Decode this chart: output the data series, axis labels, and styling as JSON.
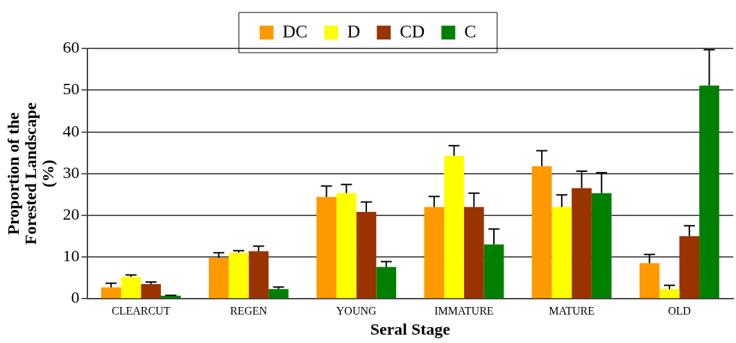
{
  "chart_data": {
    "type": "bar",
    "xlabel": "Seral Stage",
    "ylabel": "Proportion of the\nForested Landscape\n(%)",
    "categories": [
      "CLEARCUT",
      "REGEN",
      "YOUNG",
      "IMMATURE",
      "MATURE",
      "OLD"
    ],
    "series": [
      {
        "name": "DC",
        "color": "#ff9900",
        "values": [
          2.7,
          9.8,
          24.4,
          22.0,
          31.8,
          8.5
        ],
        "errors": [
          [
            2.7,
            3.7
          ],
          [
            9.8,
            11.0
          ],
          [
            24.4,
            27.0
          ],
          [
            22.0,
            24.5
          ],
          [
            31.8,
            35.5
          ],
          [
            8.5,
            10.6
          ]
        ]
      },
      {
        "name": "D",
        "color": "#ffff00",
        "values": [
          5.2,
          11.0,
          25.3,
          34.3,
          22.0,
          2.3
        ],
        "errors": [
          [
            5.2,
            5.7
          ],
          [
            11.0,
            11.5
          ],
          [
            25.3,
            27.4
          ],
          [
            34.3,
            36.7
          ],
          [
            22.0,
            24.9
          ],
          [
            2.3,
            3.2
          ]
        ]
      },
      {
        "name": "CD",
        "color": "#993300",
        "values": [
          3.5,
          11.4,
          20.8,
          22.0,
          26.5,
          15.0
        ],
        "errors": [
          [
            3.5,
            4.0
          ],
          [
            11.4,
            12.6
          ],
          [
            20.8,
            23.2
          ],
          [
            22.0,
            25.3
          ],
          [
            26.5,
            30.6
          ],
          [
            15.0,
            17.5
          ]
        ]
      },
      {
        "name": "C",
        "color": "#008000",
        "values": [
          0.7,
          2.3,
          7.6,
          13.0,
          25.3,
          51.1
        ],
        "errors": [
          [
            0.7,
            0.8
          ],
          [
            2.3,
            2.8
          ],
          [
            7.6,
            8.9
          ],
          [
            13.0,
            16.7
          ],
          [
            25.3,
            30.2
          ],
          [
            51.1,
            59.7
          ]
        ]
      }
    ],
    "ylim": [
      0,
      60
    ],
    "yticks": [
      0,
      10,
      20,
      30,
      40,
      50,
      60
    ],
    "grid": "y",
    "legend": "top"
  }
}
